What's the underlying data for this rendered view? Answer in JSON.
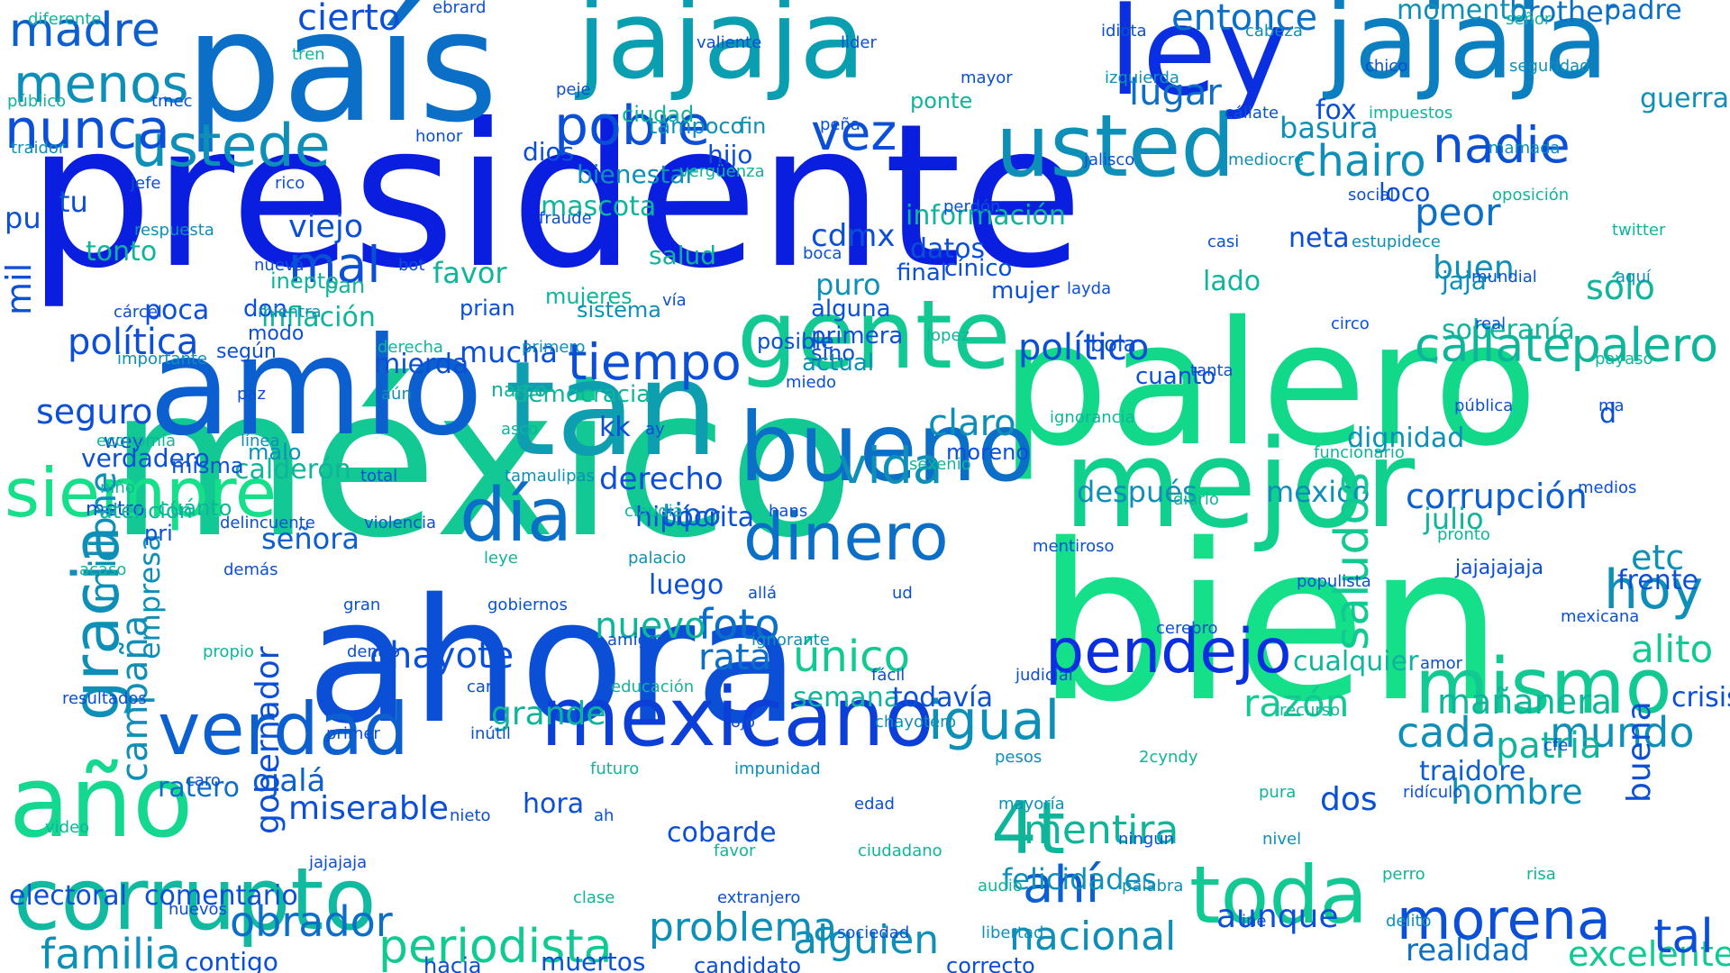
{
  "palette": [
    "#0a1ee0",
    "#0b4fd6",
    "#0b6fc8",
    "#0d8fb8",
    "#0fb59a",
    "#12d98a",
    "#22ee8a"
  ],
  "words": [
    {
      "text": "presidente",
      "color": "#0a1ee0"
    },
    {
      "text": "méxico",
      "color": "#12c994"
    },
    {
      "text": "bien",
      "color": "#14e08a"
    },
    {
      "text": "ahora",
      "color": "#0b4fd6"
    },
    {
      "text": "palero",
      "color": "#12d98a"
    },
    {
      "text": "mejor",
      "color": "#10d08e"
    },
    {
      "text": "país",
      "color": "#0b6fc8"
    },
    {
      "text": "jajaja",
      "color": "#0a9fb0"
    },
    {
      "text": "jajaja",
      "color": "#0b7fc0"
    },
    {
      "text": "ley",
      "color": "#0a2fe0"
    },
    {
      "text": "tan",
      "color": "#0d9fb0"
    },
    {
      "text": "amlo",
      "color": "#0b5fcf"
    },
    {
      "text": "bueno",
      "color": "#0b6fc8"
    },
    {
      "text": "gente",
      "color": "#12c994"
    },
    {
      "text": "usted",
      "color": "#0d8fb8"
    },
    {
      "text": "ustede",
      "color": "#0d8fb8"
    },
    {
      "text": "mexicano",
      "color": "#0b3fd8"
    },
    {
      "text": "corrupto",
      "color": "#10b9a0"
    },
    {
      "text": "verdad",
      "color": "#0b5fcf"
    },
    {
      "text": "año",
      "color": "#14d890"
    },
    {
      "text": "mismo",
      "color": "#12c994"
    },
    {
      "text": "toda",
      "color": "#12c994"
    },
    {
      "text": "morena",
      "color": "#0b4fd6"
    },
    {
      "text": "siempre",
      "color": "#14e08a"
    },
    {
      "text": "día",
      "color": "#0b6fc8"
    },
    {
      "text": "dinero",
      "color": "#0b6fc8"
    },
    {
      "text": "pendejo",
      "color": "#0a2fe0"
    },
    {
      "text": "igual",
      "color": "#0d8fb8"
    },
    {
      "text": "nunca",
      "color": "#0b4fd6"
    },
    {
      "text": "menos",
      "color": "#0d8fb8"
    },
    {
      "text": "madre",
      "color": "#0b5fcf"
    },
    {
      "text": "pobre",
      "color": "#0b4fd6"
    },
    {
      "text": "vez",
      "color": "#0b4fd6"
    },
    {
      "text": "nadie",
      "color": "#0b4fd6"
    },
    {
      "text": "hoy",
      "color": "#0d8fb8"
    },
    {
      "text": "tiempo",
      "color": "#0b4fd6"
    },
    {
      "text": "vida",
      "color": "#0d8fb8"
    },
    {
      "text": "gracia",
      "color": "#0d8fb8"
    },
    {
      "text": "periodista",
      "color": "#12c994"
    },
    {
      "text": "ahí",
      "color": "#0b5fcf"
    },
    {
      "text": "callatepalero",
      "color": "#0fb59a"
    },
    {
      "text": "político",
      "color": "#0b4fd6"
    },
    {
      "text": "política",
      "color": "#0b4fd6"
    },
    {
      "text": "corrupción",
      "color": "#0b5fcf"
    },
    {
      "text": "familia",
      "color": "#0d8fb8"
    },
    {
      "text": "obrador",
      "color": "#0b6fc8"
    },
    {
      "text": "problema",
      "color": "#0d8fb8"
    },
    {
      "text": "alguien",
      "color": "#0d8fb8"
    },
    {
      "text": "nacional",
      "color": "#0d8fb8"
    },
    {
      "text": "chairo",
      "color": "#0d8fb8"
    },
    {
      "text": "mentira",
      "color": "#0fb59a"
    },
    {
      "text": "cada",
      "color": "#0d8fb8"
    },
    {
      "text": "mundo",
      "color": "#0d8fb8"
    },
    {
      "text": "entonce",
      "color": "#0b6fc8"
    },
    {
      "text": "cierto",
      "color": "#0b4fd6"
    },
    {
      "text": "lugar",
      "color": "#0b6fc8"
    },
    {
      "text": "peor",
      "color": "#0b6fc8"
    },
    {
      "text": "buen",
      "color": "#0d8fb8"
    },
    {
      "text": "sólo",
      "color": "#0fb59a"
    },
    {
      "text": "mal",
      "color": "#0b4fd6"
    },
    {
      "text": "viejo",
      "color": "#0b4fd6"
    },
    {
      "text": "favor",
      "color": "#0fb59a"
    },
    {
      "text": "inflación",
      "color": "#0fb59a"
    },
    {
      "text": "seguro",
      "color": "#0b4fd6"
    },
    {
      "text": "derecho",
      "color": "#0b4fd6"
    },
    {
      "text": "tipo",
      "color": "#0b5fcf"
    },
    {
      "text": "señora",
      "color": "#0b5fcf"
    },
    {
      "text": "claro",
      "color": "#0d8fb8"
    },
    {
      "text": "después",
      "color": "#0d8fb8"
    },
    {
      "text": "mexico",
      "color": "#0d8fb8"
    },
    {
      "text": "saludos",
      "color": "#12c994"
    },
    {
      "text": "etc",
      "color": "#0d8fb8"
    },
    {
      "text": "alito",
      "color": "#12c994"
    },
    {
      "text": "foto",
      "color": "#0b6fc8"
    },
    {
      "text": "rata",
      "color": "#0b6fc8"
    },
    {
      "text": "único",
      "color": "#12c994"
    },
    {
      "text": "nuevo",
      "color": "#0fb59a"
    },
    {
      "text": "grande",
      "color": "#0fb59a"
    },
    {
      "text": "chayote",
      "color": "#0b4fd6"
    },
    {
      "text": "patria",
      "color": "#0fb59a"
    },
    {
      "text": "aunque",
      "color": "#0b4fd6"
    },
    {
      "text": "ojalá",
      "color": "#0b5fcf"
    },
    {
      "text": "miserable",
      "color": "#0b4fd6"
    },
    {
      "text": "dos",
      "color": "#0b4fd6"
    },
    {
      "text": "hombre",
      "color": "#0d8fb8"
    },
    {
      "text": "razón",
      "color": "#12c994"
    },
    {
      "text": "excelente",
      "color": "#12c994"
    },
    {
      "text": "tal",
      "color": "#0b4fd6"
    },
    {
      "text": "realidad",
      "color": "#0b6fc8"
    },
    {
      "text": "felicidades",
      "color": "#0d8fb8"
    },
    {
      "text": "4t",
      "color": "#0fb59a"
    },
    {
      "text": "campaña",
      "color": "#0d8fb8"
    },
    {
      "text": "empresa",
      "color": "#0d8fb8"
    },
    {
      "text": "millone",
      "color": "#0d8fb8"
    },
    {
      "text": "jajajajaja",
      "color": "#0b4fd6"
    },
    {
      "text": "cdmx",
      "color": "#0b4fd6"
    },
    {
      "text": "datos",
      "color": "#0b4fd6"
    },
    {
      "text": "puro",
      "color": "#0d8fb8"
    },
    {
      "text": "lado",
      "color": "#0fb59a"
    },
    {
      "text": "mucha",
      "color": "#0b4fd6"
    },
    {
      "text": "mierda",
      "color": "#0b4fd6"
    },
    {
      "text": "brother",
      "color": "#0b6fc8"
    },
    {
      "text": "padre",
      "color": "#0b6fc8"
    },
    {
      "text": "momento",
      "color": "#0d8fb8"
    },
    {
      "text": "basura",
      "color": "#0d8fb8"
    },
    {
      "text": "fox",
      "color": "#0b4fd6"
    },
    {
      "text": "guerra",
      "color": "#0d8fb8"
    },
    {
      "text": "d",
      "color": "#0b4fd6"
    },
    {
      "text": "buena",
      "color": "#0b4fd6"
    },
    {
      "text": "mañanera",
      "color": "#0fb59a"
    },
    {
      "text": "traidore",
      "color": "#0b5fcf"
    },
    {
      "text": "dignidad",
      "color": "#0d8fb8"
    },
    {
      "text": "cualquier",
      "color": "#0fb59a"
    },
    {
      "text": "julio",
      "color": "#0fb59a"
    },
    {
      "text": "ratero",
      "color": "#0b6fc8"
    },
    {
      "text": "verdadero",
      "color": "#0b4fd6"
    },
    {
      "text": "calderón",
      "color": "#0fb59a"
    },
    {
      "text": "hipócrita",
      "color": "#0b4fd6"
    },
    {
      "text": "gobernador",
      "color": "#0b4fd6"
    },
    {
      "text": "electoral",
      "color": "#0b4fd6"
    },
    {
      "text": "comentario",
      "color": "#0b4fd6"
    },
    {
      "text": "cobarde",
      "color": "#0b4fd6"
    },
    {
      "text": "hora",
      "color": "#0b4fd6"
    },
    {
      "text": "luego",
      "color": "#0b4fd6"
    },
    {
      "text": "semana",
      "color": "#0fb59a"
    },
    {
      "text": "todavía",
      "color": "#0b4fd6"
    },
    {
      "text": "soberanía",
      "color": "#0fb59a"
    },
    {
      "text": "frente",
      "color": "#0b4fd6"
    },
    {
      "text": "crisis",
      "color": "#0b4fd6"
    },
    {
      "text": "contigo",
      "color": "#0b4fd6"
    },
    {
      "text": "muertos",
      "color": "#0b4fd6"
    },
    {
      "text": "candidato",
      "color": "#0b4fd6"
    },
    {
      "text": "hacia",
      "color": "#0b4fd6"
    },
    {
      "text": "correcto",
      "color": "#0b4fd6"
    },
    {
      "text": "mascota",
      "color": "#0fb59a"
    },
    {
      "text": "tu",
      "color": "#0b4fd6"
    },
    {
      "text": "pu",
      "color": "#0b4fd6"
    },
    {
      "text": "kk",
      "color": "#0b4fd6"
    },
    {
      "text": "tonto",
      "color": "#0fb59a"
    },
    {
      "text": "dios",
      "color": "#0b4fd6"
    },
    {
      "text": "hijo",
      "color": "#0b4fd6"
    },
    {
      "text": "bienestar",
      "color": "#0d8fb8"
    },
    {
      "text": "ciudad",
      "color": "#0fb59a"
    },
    {
      "text": "tampoco",
      "color": "#0d8fb8"
    },
    {
      "text": "fin",
      "color": "#0d8fb8"
    },
    {
      "text": "jaja",
      "color": "#0d8fb8"
    },
    {
      "text": "ponte",
      "color": "#0fb59a"
    },
    {
      "text": "prian",
      "color": "#0b4fd6"
    },
    {
      "text": "sino",
      "color": "#0b4fd6"
    },
    {
      "text": "cuanto",
      "color": "#0b4fd6"
    },
    {
      "text": "moreno",
      "color": "#0b4fd6"
    },
    {
      "text": "neta",
      "color": "#0b4fd6"
    },
    {
      "text": "mujeres",
      "color": "#0fb59a"
    },
    {
      "text": "posible",
      "color": "#0b4fd6"
    },
    {
      "text": "sistema",
      "color": "#0d8fb8"
    },
    {
      "text": "mil",
      "color": "#0b4fd6"
    },
    {
      "text": "loco",
      "color": "#0b4fd6"
    },
    {
      "text": "información",
      "color": "#0fb59a"
    },
    {
      "text": "salud",
      "color": "#0fb59a"
    },
    {
      "text": "mujer",
      "color": "#0b4fd6"
    },
    {
      "text": "cínico",
      "color": "#0b4fd6"
    },
    {
      "text": "alguna",
      "color": "#0b4fd6"
    },
    {
      "text": "primera",
      "color": "#0b4fd6"
    },
    {
      "text": "actual",
      "color": "#0d8fb8"
    },
    {
      "text": "final",
      "color": "#0b4fd6"
    },
    {
      "text": "bola",
      "color": "#0b4fd6"
    },
    {
      "text": "poca",
      "color": "#0b4fd6"
    },
    {
      "text": "democracia",
      "color": "#0fb59a"
    },
    {
      "text": "wey",
      "color": "#0b4fd6"
    },
    {
      "text": "misma",
      "color": "#0b4fd6"
    },
    {
      "text": "malo",
      "color": "#0d8fb8"
    },
    {
      "text": "metro",
      "color": "#0b4fd6"
    },
    {
      "text": "cuánto",
      "color": "#0fb59a"
    },
    {
      "text": "pri",
      "color": "#0b4fd6"
    },
    {
      "text": "inepto",
      "color": "#0fb59a"
    },
    {
      "text": "pan",
      "color": "#0fb59a"
    },
    {
      "text": "narco",
      "color": "#0fb59a"
    },
    {
      "text": "don",
      "color": "#0b4fd6"
    },
    {
      "text": "modo",
      "color": "#0b4fd6"
    },
    {
      "text": "según",
      "color": "#0b4fd6"
    },
    {
      "text": "atención",
      "color": "#0fb59a"
    },
    {
      "text": "pura",
      "color": "#0fb59a"
    },
    {
      "text": "perro",
      "color": "#0fb59a"
    },
    {
      "text": "señor",
      "color": "#0fb59a"
    },
    {
      "text": "público",
      "color": "#0fb59a"
    },
    {
      "text": "jefe",
      "color": "#0b4fd6"
    },
    {
      "text": "nueva",
      "color": "#0b4fd6"
    },
    {
      "text": "derecha",
      "color": "#0fb59a"
    },
    {
      "text": "asco",
      "color": "#0fb59a"
    },
    {
      "text": "claudia",
      "color": "#0fb59a"
    },
    {
      "text": "allá",
      "color": "#0b4fd6"
    },
    {
      "text": "fácil",
      "color": "#0b4fd6"
    },
    {
      "text": "pesos",
      "color": "#0d8fb8"
    },
    {
      "text": "ningún",
      "color": "#0b4fd6"
    },
    {
      "text": "ine",
      "color": "#0b4fd6"
    },
    {
      "text": "chico",
      "color": "#0b4fd6"
    },
    {
      "text": "mamada",
      "color": "#0d8fb8"
    },
    {
      "text": "twitter",
      "color": "#0fb59a"
    },
    {
      "text": "cárcel",
      "color": "#0b4fd6"
    },
    {
      "text": "paz",
      "color": "#0b4fd6"
    },
    {
      "text": "total",
      "color": "#0b4fd6"
    },
    {
      "text": "leye",
      "color": "#0fb59a"
    },
    {
      "text": "amigos",
      "color": "#0b4fd6"
    },
    {
      "text": "ojo",
      "color": "#0b4fd6"
    },
    {
      "text": "edad",
      "color": "#0b4fd6"
    },
    {
      "text": "audio",
      "color": "#0fb59a"
    },
    {
      "text": "idiota",
      "color": "#0b4fd6"
    },
    {
      "text": "cállate",
      "color": "#0b4fd6"
    },
    {
      "text": "social",
      "color": "#0b4fd6"
    },
    {
      "text": "mundial",
      "color": "#0b4fd6"
    },
    {
      "text": "payaso",
      "color": "#0fb59a"
    },
    {
      "text": "economía",
      "color": "#0fb59a"
    },
    {
      "text": "delincuente",
      "color": "#0b4fd6"
    },
    {
      "text": "gran",
      "color": "#0b4fd6"
    },
    {
      "text": "cara",
      "color": "#0b4fd6"
    },
    {
      "text": "futuro",
      "color": "#0fb59a"
    },
    {
      "text": "favor",
      "color": "#0fb59a"
    },
    {
      "text": "sociedad",
      "color": "#0b4fd6"
    },
    {
      "text": "mayor",
      "color": "#0b4fd6"
    },
    {
      "text": "jalisco",
      "color": "#0b4fd6"
    },
    {
      "text": "casi",
      "color": "#0b4fd6"
    },
    {
      "text": "circo",
      "color": "#0b4fd6"
    },
    {
      "text": "pública",
      "color": "#0b4fd6"
    },
    {
      "text": "medios",
      "color": "#0b4fd6"
    },
    {
      "text": "acaso",
      "color": "#0fb59a"
    },
    {
      "text": "propio",
      "color": "#0fb59a"
    },
    {
      "text": "primer",
      "color": "#0b4fd6"
    },
    {
      "text": "nieto",
      "color": "#0b4fd6"
    },
    {
      "text": "clase",
      "color": "#0fb59a"
    },
    {
      "text": "valiente",
      "color": "#0b4fd6"
    },
    {
      "text": "peña",
      "color": "#0b4fd6"
    },
    {
      "text": "perdón",
      "color": "#0b4fd6"
    },
    {
      "text": "layda",
      "color": "#0b4fd6"
    },
    {
      "text": "tanta",
      "color": "#0b4fd6"
    },
    {
      "text": "funcionario",
      "color": "#0fb59a"
    },
    {
      "text": "pronto",
      "color": "#0fb59a"
    },
    {
      "text": "mexicana",
      "color": "#0b4fd6"
    },
    {
      "text": "resultados",
      "color": "#0b4fd6"
    },
    {
      "text": "caro",
      "color": "#0b4fd6"
    },
    {
      "text": "jajajaja",
      "color": "#0b4fd6"
    },
    {
      "text": "ebrard",
      "color": "#0b4fd6"
    },
    {
      "text": "peje",
      "color": "#0b4fd6"
    },
    {
      "text": "vergüenza",
      "color": "#0fb59a"
    },
    {
      "text": "boca",
      "color": "#0b4fd6"
    },
    {
      "text": "lopez",
      "color": "#0fb59a"
    },
    {
      "text": "ignorancia",
      "color": "#0fb59a"
    },
    {
      "text": "diario",
      "color": "#0fb59a"
    },
    {
      "text": "populista",
      "color": "#0b4fd6"
    },
    {
      "text": "amor",
      "color": "#0b4fd6"
    },
    {
      "text": "cfe",
      "color": "#0b4fd6"
    },
    {
      "text": "video",
      "color": "#0fb59a"
    },
    {
      "text": "huevos",
      "color": "#0b4fd6"
    },
    {
      "text": "tren",
      "color": "#0fb59a"
    },
    {
      "text": "honor",
      "color": "#0b4fd6"
    },
    {
      "text": "fraude",
      "color": "#0b4fd6"
    },
    {
      "text": "vía",
      "color": "#0b4fd6"
    },
    {
      "text": "miedo",
      "color": "#0b4fd6"
    },
    {
      "text": "sexenio",
      "color": "#0fb59a"
    },
    {
      "text": "mentiroso",
      "color": "#0b4fd6"
    },
    {
      "text": "cerebro",
      "color": "#0b4fd6"
    },
    {
      "text": "recurso",
      "color": "#0fb59a"
    },
    {
      "text": "ridículo",
      "color": "#0b4fd6"
    },
    {
      "text": "risa",
      "color": "#0fb59a"
    },
    {
      "text": "diferente",
      "color": "#0fb59a"
    },
    {
      "text": "tmec",
      "color": "#0b4fd6"
    },
    {
      "text": "rico",
      "color": "#0b4fd6"
    },
    {
      "text": "bot",
      "color": "#0b4fd6"
    },
    {
      "text": "primero",
      "color": "#0d8fb8"
    },
    {
      "text": "ay",
      "color": "#0b4fd6"
    },
    {
      "text": "hans",
      "color": "#0b4fd6"
    },
    {
      "text": "ud",
      "color": "#0b4fd6"
    },
    {
      "text": "judicial",
      "color": "#0b4fd6"
    },
    {
      "text": "2cyndy",
      "color": "#0fb59a"
    },
    {
      "text": "nivel",
      "color": "#0d8fb8"
    },
    {
      "text": "delito",
      "color": "#0d8fb8"
    },
    {
      "text": "seguridad",
      "color": "#0d8fb8"
    },
    {
      "text": "traidor",
      "color": "#0d8fb8"
    },
    {
      "text": "respuesta",
      "color": "#0d8fb8"
    },
    {
      "text": "mientra",
      "color": "#0d8fb8"
    },
    {
      "text": "aún",
      "color": "#0d8fb8"
    },
    {
      "text": "tamaulipas",
      "color": "#0d8fb8"
    },
    {
      "text": "palacio",
      "color": "#0d8fb8"
    },
    {
      "text": "ignorante",
      "color": "#0d8fb8"
    },
    {
      "text": "chayotero",
      "color": "#0d8fb8"
    },
    {
      "text": "mayoría",
      "color": "#0d8fb8"
    },
    {
      "text": "palabra",
      "color": "#0d8fb8"
    },
    {
      "text": "cabeza",
      "color": "#0d8fb8"
    },
    {
      "text": "impuestos",
      "color": "#0fb59a"
    },
    {
      "text": "oposición",
      "color": "#0fb59a"
    },
    {
      "text": "aquí",
      "color": "#0d8fb8"
    },
    {
      "text": "importante",
      "color": "#0d8fb8"
    },
    {
      "text": "línea",
      "color": "#0d8fb8"
    },
    {
      "text": "violencia",
      "color": "#0b4fd6"
    },
    {
      "text": "gobiernos",
      "color": "#0b4fd6"
    },
    {
      "text": "educación",
      "color": "#0fb59a"
    },
    {
      "text": "impunidad",
      "color": "#0d8fb8"
    },
    {
      "text": "ciudadano",
      "color": "#0fb59a"
    },
    {
      "text": "libertad",
      "color": "#0d8fb8"
    },
    {
      "text": "izquierda",
      "color": "#0d8fb8"
    },
    {
      "text": "mediocre",
      "color": "#0d8fb8"
    },
    {
      "text": "estupidece",
      "color": "#0d8fb8"
    },
    {
      "text": "real",
      "color": "#0b4fd6"
    },
    {
      "text": "ma",
      "color": "#0b4fd6"
    },
    {
      "text": "niño",
      "color": "#0fb59a"
    },
    {
      "text": "demás",
      "color": "#0b4fd6"
    },
    {
      "text": "dentro",
      "color": "#0b4fd6"
    },
    {
      "text": "inútil",
      "color": "#0b4fd6"
    },
    {
      "text": "ah",
      "color": "#0b4fd6"
    },
    {
      "text": "extranjero",
      "color": "#0b4fd6"
    },
    {
      "text": "lider",
      "color": "#0b4fd6"
    }
  ]
}
